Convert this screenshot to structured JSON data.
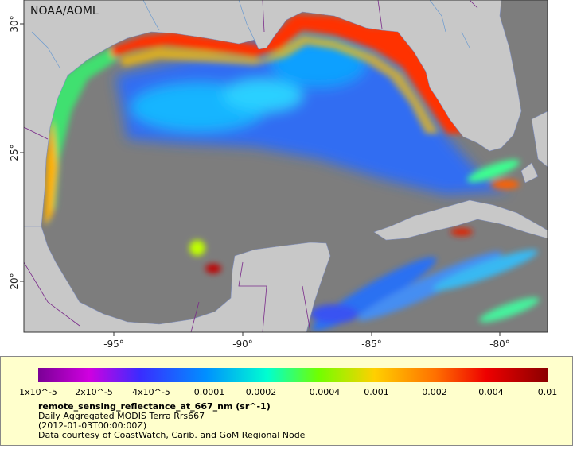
{
  "map": {
    "credit": "NOAA/AOML",
    "lon_labels": [
      "-95°",
      "-90°",
      "-85°",
      "-80°"
    ],
    "lat_labels": [
      "30°",
      "25°",
      "20°"
    ]
  },
  "legend": {
    "scale_labels": [
      "1x10^-5",
      "2x10^-5",
      "4x10^-5",
      "0.0001",
      "0.0002",
      "0.0004",
      "0.001",
      "0.002",
      "0.004",
      "0.01"
    ],
    "title": "remote_sensing_reflectance_at_667_nm (sr^-1)",
    "lines": [
      "Daily Aggregated MODIS Terra Rrs667",
      "(2012-01-03T00:00:00Z)",
      "Data courtesy of CoastWatch, Carib. and GoM Regional Node"
    ]
  }
}
